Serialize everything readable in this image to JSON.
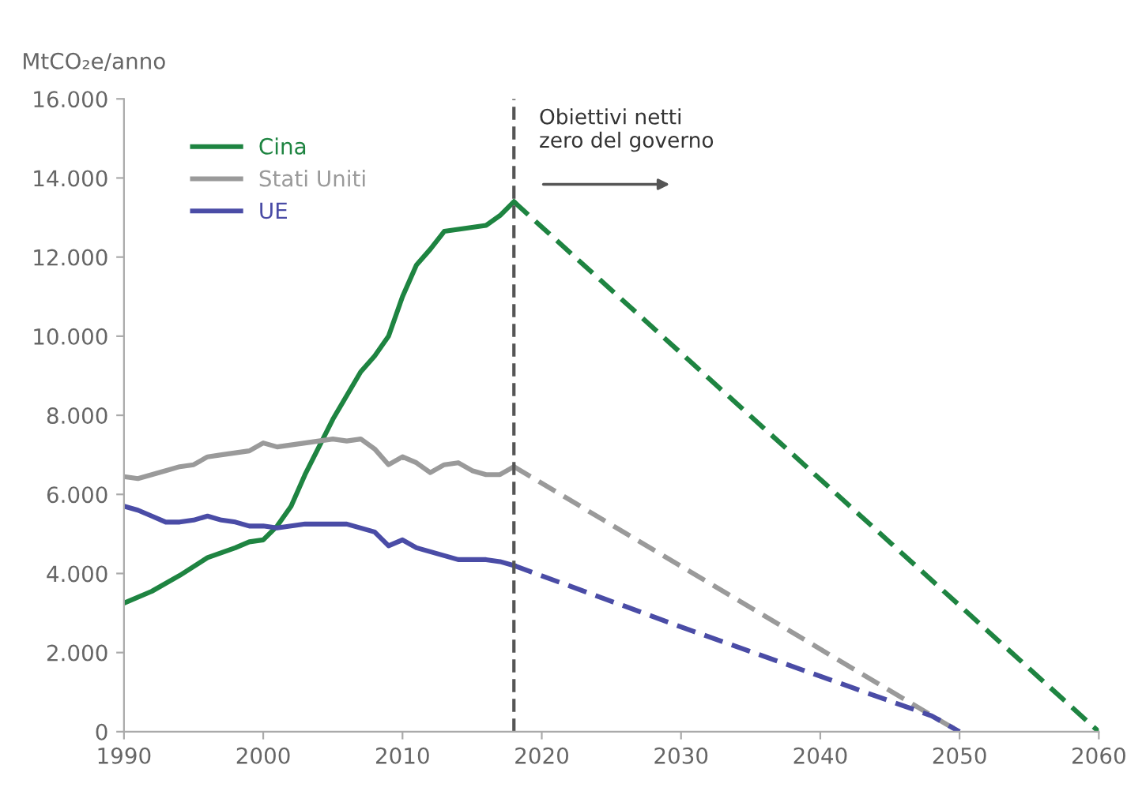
{
  "chart_data": {
    "type": "line",
    "ylabel": "MtCO₂e/anno",
    "series": [
      {
        "name": "Cina",
        "color": "#1e8441",
        "x": [
          1990,
          1992,
          1994,
          1996,
          1998,
          1999,
          2000,
          2001,
          2002,
          2003,
          2004,
          2005,
          2006,
          2007,
          2008,
          2009,
          2010,
          2011,
          2012,
          2013,
          2014,
          2015,
          2016,
          2017,
          2018
        ],
        "values": [
          3250,
          3550,
          3950,
          4400,
          4650,
          4800,
          4850,
          5200,
          5700,
          6500,
          7200,
          7900,
          8500,
          9100,
          9500,
          10000,
          11000,
          11800,
          12200,
          12650,
          12700,
          12750,
          12800,
          13050,
          13400
        ]
      },
      {
        "name": "Stati Uniti",
        "color": "#9a9a9a",
        "x": [
          1990,
          1991,
          1992,
          1993,
          1994,
          1995,
          1996,
          1997,
          1998,
          1999,
          2000,
          2001,
          2002,
          2003,
          2004,
          2005,
          2006,
          2007,
          2008,
          2009,
          2010,
          2011,
          2012,
          2013,
          2014,
          2015,
          2016,
          2017,
          2018
        ],
        "values": [
          6450,
          6400,
          6500,
          6600,
          6700,
          6750,
          6950,
          7000,
          7050,
          7100,
          7300,
          7200,
          7250,
          7300,
          7350,
          7400,
          7350,
          7400,
          7150,
          6750,
          6950,
          6800,
          6550,
          6750,
          6800,
          6600,
          6500,
          6500,
          6700
        ]
      },
      {
        "name": "UE",
        "color": "#4a4ca6",
        "x": [
          1990,
          1991,
          1992,
          1993,
          1994,
          1995,
          1996,
          1997,
          1998,
          1999,
          2000,
          2001,
          2002,
          2003,
          2004,
          2005,
          2006,
          2007,
          2008,
          2009,
          2010,
          2011,
          2012,
          2013,
          2014,
          2015,
          2016,
          2017,
          2018
        ],
        "values": [
          5700,
          5600,
          5450,
          5300,
          5300,
          5350,
          5450,
          5350,
          5300,
          5200,
          5200,
          5150,
          5200,
          5250,
          5250,
          5250,
          5250,
          5150,
          5050,
          4700,
          4850,
          4650,
          4550,
          4450,
          4350,
          4350,
          4350,
          4300,
          4200
        ]
      },
      {
        "color": "#1e8441",
        "line_style": "dashed",
        "x": [
          2018,
          2060
        ],
        "values": [
          13400,
          0
        ]
      },
      {
        "color": "#9a9a9a",
        "line_style": "dashed",
        "x": [
          2018,
          2049,
          2050
        ],
        "values": [
          6700,
          200,
          0
        ]
      },
      {
        "color": "#4a4ca6",
        "line_style": "dashed",
        "x": [
          2018,
          2030,
          2040,
          2048,
          2050
        ],
        "values": [
          4200,
          2650,
          1400,
          400,
          0
        ]
      }
    ],
    "xlim": [
      1990,
      2060
    ],
    "xticks": [
      1990,
      2000,
      2010,
      2020,
      2030,
      2040,
      2050,
      2060
    ],
    "ylim": [
      0,
      16000
    ],
    "yticks": [
      {
        "value": 0,
        "label": "0"
      },
      {
        "value": 2000,
        "label": "2.000"
      },
      {
        "value": 4000,
        "label": "4.000"
      },
      {
        "value": 6000,
        "label": "6.000"
      },
      {
        "value": 8000,
        "label": "8.000"
      },
      {
        "value": 10000,
        "label": "10.000"
      },
      {
        "value": 12000,
        "label": "12.000"
      },
      {
        "value": 14000,
        "label": "14.000"
      },
      {
        "value": 16000,
        "label": "16.000"
      }
    ],
    "ref_lines": [
      {
        "axis": "x",
        "value": 2018,
        "label": "Obiettivi netti\nzero del governo",
        "color": "#555555",
        "line_style": "dashed"
      }
    ],
    "legend": "top left",
    "grid": false,
    "marker": "none",
    "line_style": "solid"
  }
}
